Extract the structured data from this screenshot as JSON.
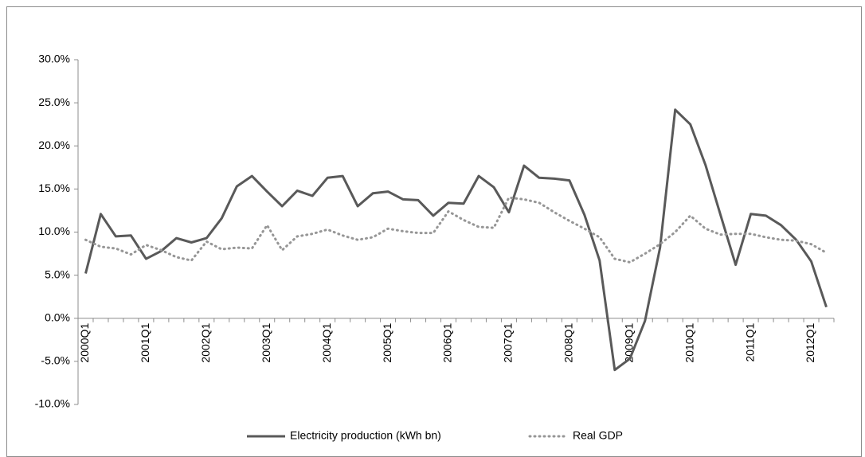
{
  "chart_data": {
    "type": "line",
    "categories": [
      "2000Q1",
      null,
      null,
      null,
      "2001Q1",
      null,
      null,
      null,
      "2002Q1",
      null,
      null,
      null,
      "2003Q1",
      null,
      null,
      null,
      "2004Q1",
      null,
      null,
      null,
      "2005Q1",
      null,
      null,
      null,
      "2006Q1",
      null,
      null,
      null,
      "2007Q1",
      null,
      null,
      null,
      "2008Q1",
      null,
      null,
      null,
      "2009Q1",
      null,
      null,
      null,
      "2010Q1",
      null,
      null,
      null,
      "2011Q1",
      null,
      null,
      null,
      "2012Q1",
      null
    ],
    "series": [
      {
        "name": "Electricity production (kWh bn)",
        "color": "#595959",
        "style": "solid",
        "values": [
          5.2,
          12.1,
          9.5,
          9.6,
          6.9,
          7.8,
          9.3,
          8.8,
          9.3,
          11.6,
          15.3,
          16.5,
          14.7,
          13.0,
          14.8,
          14.2,
          16.3,
          16.5,
          13.0,
          14.5,
          14.7,
          13.8,
          13.7,
          11.9,
          13.4,
          13.3,
          16.5,
          15.2,
          12.3,
          17.7,
          16.3,
          16.2,
          16.0,
          12.0,
          6.7,
          -6.0,
          -4.7,
          -0.3,
          8.2,
          24.2,
          22.5,
          17.8,
          12.0,
          6.2,
          12.1,
          11.9,
          10.8,
          9.1,
          6.6,
          1.3
        ]
      },
      {
        "name": "Real GDP",
        "color": "#969696",
        "style": "dotted",
        "values": [
          9.1,
          8.3,
          8.1,
          7.4,
          8.5,
          7.9,
          7.1,
          6.7,
          8.9,
          8.0,
          8.2,
          8.1,
          10.8,
          7.9,
          9.5,
          9.8,
          10.3,
          9.6,
          9.1,
          9.4,
          10.4,
          10.1,
          9.9,
          9.9,
          12.4,
          11.4,
          10.6,
          10.5,
          14.0,
          13.8,
          13.4,
          12.3,
          11.3,
          10.4,
          9.4,
          6.9,
          6.5,
          7.5,
          8.6,
          10.0,
          11.9,
          10.4,
          9.7,
          9.8,
          9.8,
          9.4,
          9.1,
          9.0,
          8.6,
          7.6
        ]
      }
    ],
    "ylim": [
      -10,
      30
    ],
    "yticks": [
      {
        "value": -10,
        "label": "-10.0%"
      },
      {
        "value": -5,
        "label": "-5.0%"
      },
      {
        "value": 0,
        "label": "0.0%"
      },
      {
        "value": 5,
        "label": "5.0%"
      },
      {
        "value": 10,
        "label": "10.0%"
      },
      {
        "value": 15,
        "label": "15.0%"
      },
      {
        "value": 20,
        "label": "20.0%"
      },
      {
        "value": 25,
        "label": "25.0%"
      },
      {
        "value": 30,
        "label": "30.0%"
      }
    ],
    "grid": false,
    "legend": "bottom"
  }
}
